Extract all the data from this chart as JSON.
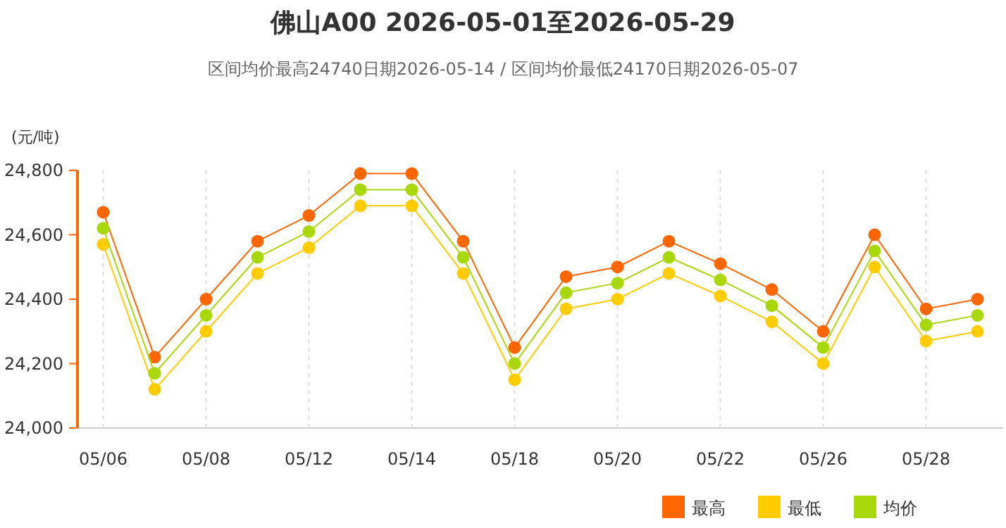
{
  "chart_data": {
    "type": "line",
    "title": "佛山A00 2026-05-01至2026-05-29",
    "subtitle": "区间均价最高24740日期2026-05-14 / 区间均价最低24170日期2026-05-07",
    "ylabel": "(元/吨)",
    "categories": [
      "05/06",
      null,
      "05/08",
      null,
      "05/12",
      null,
      "05/14",
      null,
      "05/18",
      null,
      "05/20",
      null,
      "05/22",
      null,
      "05/26",
      null,
      "05/28",
      null
    ],
    "series": [
      {
        "name": "最高",
        "color": "#ff6600",
        "values": [
          24670,
          24220,
          24400,
          24580,
          24660,
          24790,
          24790,
          24580,
          24250,
          24470,
          24500,
          24580,
          24510,
          24430,
          24300,
          24600,
          24370,
          24400
        ]
      },
      {
        "name": "最低",
        "color": "#ffcc00",
        "values": [
          24570,
          24120,
          24300,
          24480,
          24560,
          24690,
          24690,
          24480,
          24150,
          24370,
          24400,
          24480,
          24410,
          24330,
          24200,
          24500,
          24270,
          24300
        ]
      },
      {
        "name": "均价",
        "color": "#a8d80c",
        "values": [
          24620,
          24170,
          24350,
          24530,
          24610,
          24740,
          24740,
          24530,
          24200,
          24420,
          24450,
          24530,
          24460,
          24380,
          24250,
          24550,
          24320,
          24350
        ]
      }
    ],
    "ylim": [
      24000,
      24800
    ],
    "yticks": [
      {
        "value": 24000,
        "label": "24,000"
      },
      {
        "value": 24200,
        "label": "24,200"
      },
      {
        "value": 24400,
        "label": "24,400"
      },
      {
        "value": 24600,
        "label": "24,600"
      },
      {
        "value": 24800,
        "label": "24,800"
      }
    ],
    "grid": "x",
    "legend": "bottom right",
    "marker": "circle",
    "line_style": "solid"
  }
}
